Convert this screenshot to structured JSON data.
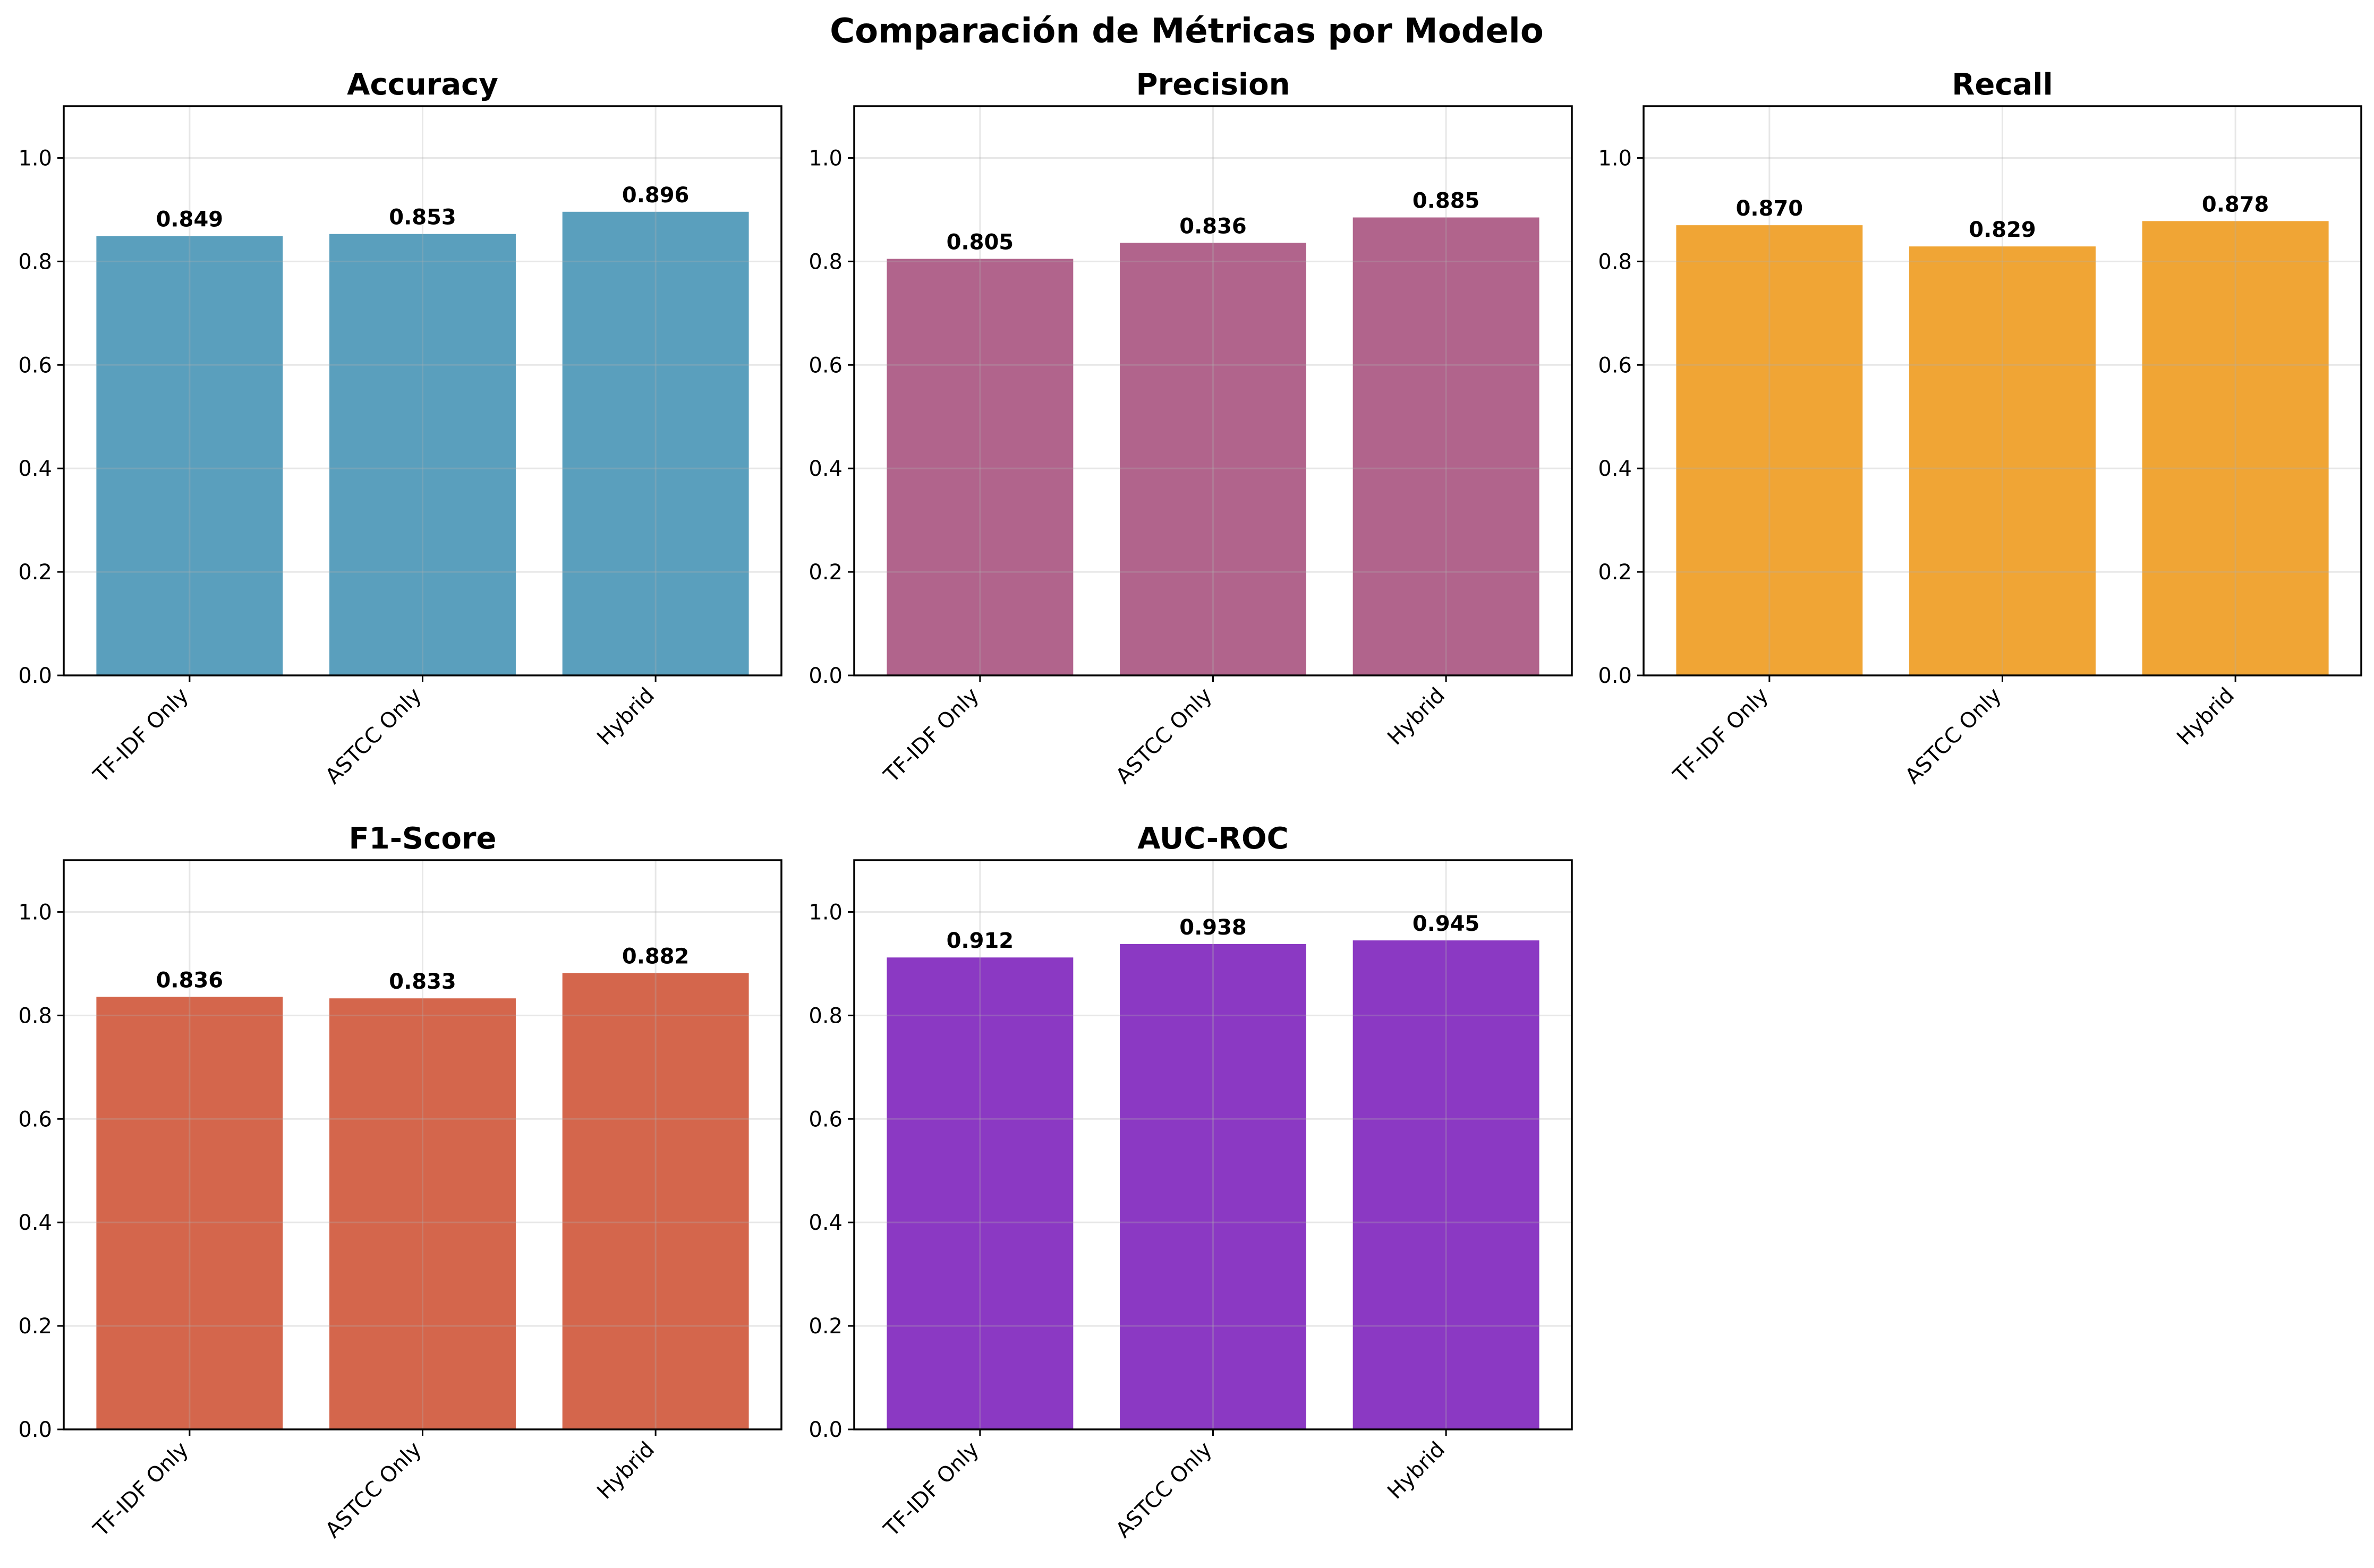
{
  "chart_data": {
    "title": "Comparación de Métricas por Modelo",
    "type": "bar",
    "ylim": [
      0,
      1.1
    ],
    "yticks": [
      0.0,
      0.2,
      0.4,
      0.6,
      0.8,
      1.0
    ],
    "ytick_labels": [
      "0.0",
      "0.2",
      "0.4",
      "0.6",
      "0.8",
      "1.0"
    ],
    "grid": true,
    "layout": "2x3 grid of subplots, last cell empty",
    "xtick_rotation": "45 degrees",
    "charts": [
      {
        "type": "bar",
        "title": "Accuracy",
        "categories": [
          "TF-IDF Only",
          "ASTCC Only",
          "Hybrid"
        ],
        "values": [
          0.849,
          0.853,
          0.896
        ],
        "value_labels": [
          "0.849",
          "0.853",
          "0.896"
        ],
        "color": "#5a9fbd"
      },
      {
        "type": "bar",
        "title": "Precision",
        "categories": [
          "TF-IDF Only",
          "ASTCC Only",
          "Hybrid"
        ],
        "values": [
          0.805,
          0.836,
          0.885
        ],
        "value_labels": [
          "0.805",
          "0.836",
          "0.885"
        ],
        "color": "#b1648c"
      },
      {
        "type": "bar",
        "title": "Recall",
        "categories": [
          "TF-IDF Only",
          "ASTCC Only",
          "Hybrid"
        ],
        "values": [
          0.87,
          0.829,
          0.878
        ],
        "value_labels": [
          "0.870",
          "0.829",
          "0.878"
        ],
        "color": "#f0a535"
      },
      {
        "type": "bar",
        "title": "F1-Score",
        "categories": [
          "TF-IDF Only",
          "ASTCC Only",
          "Hybrid"
        ],
        "values": [
          0.836,
          0.833,
          0.882
        ],
        "value_labels": [
          "0.836",
          "0.833",
          "0.882"
        ],
        "color": "#d4664c"
      },
      {
        "type": "bar",
        "title": "AUC-ROC",
        "categories": [
          "TF-IDF Only",
          "ASTCC Only",
          "Hybrid"
        ],
        "values": [
          0.912,
          0.938,
          0.945
        ],
        "value_labels": [
          "0.912",
          "0.938",
          "0.945"
        ],
        "color": "#8b39c3"
      }
    ]
  }
}
